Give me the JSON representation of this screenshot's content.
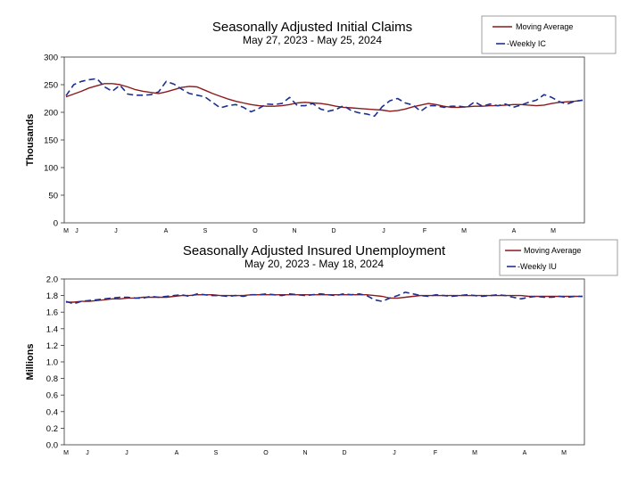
{
  "chart_data": [
    {
      "type": "line",
      "title": "Seasonally Adjusted Initial Claims",
      "subtitle": "May 27, 2023 - May 25, 2024",
      "ylabel": "Thousands",
      "ylim": [
        0,
        300
      ],
      "yticks": [
        "0",
        "50",
        "100",
        "150",
        "200",
        "250",
        "300"
      ],
      "month_labels": [
        "M",
        "J",
        "J",
        "A",
        "S",
        "O",
        "N",
        "D",
        "J",
        "F",
        "M",
        "A",
        "M"
      ],
      "grid": false,
      "legend_position": "top-right",
      "colors": {
        "moving_average": "#8B1A1A",
        "weekly": "#1F2F8F"
      },
      "series": [
        {
          "name": "Moving Average",
          "style": "solid",
          "values": [
            228,
            233,
            238,
            244,
            248,
            252,
            252,
            250,
            246,
            241,
            238,
            236,
            234,
            237,
            241,
            245,
            247,
            246,
            240,
            234,
            229,
            224,
            220,
            217,
            214,
            212,
            211,
            211,
            212,
            214,
            217,
            218,
            217,
            216,
            214,
            211,
            209,
            208,
            207,
            206,
            205,
            204,
            202,
            203,
            206,
            210,
            213,
            216,
            214,
            211,
            209,
            209,
            210,
            211,
            211,
            212,
            212,
            213,
            214,
            214,
            213,
            212,
            213,
            216,
            218,
            219,
            220,
            222
          ]
        },
        {
          "name": "-Weekly IC",
          "style": "dashed",
          "values": [
            230,
            250,
            256,
            259,
            261,
            246,
            238,
            249,
            233,
            231,
            231,
            232,
            237,
            256,
            251,
            242,
            234,
            231,
            228,
            218,
            208,
            212,
            214,
            209,
            201,
            207,
            215,
            214,
            216,
            227,
            212,
            212,
            216,
            206,
            202,
            205,
            212,
            203,
            199,
            197,
            193,
            210,
            221,
            225,
            217,
            213,
            202,
            212,
            212,
            209,
            211,
            211,
            209,
            219,
            211,
            215,
            212,
            215,
            209,
            213,
            218,
            222,
            232,
            227,
            219,
            215,
            220,
            222
          ]
        }
      ]
    },
    {
      "type": "line",
      "title": "Seasonally Adjusted Insured Unemployment",
      "subtitle": "May 20, 2023 - May 18, 2024",
      "ylabel": "Millions",
      "ylim": [
        0,
        2.0
      ],
      "yticks": [
        "0.0",
        "0.2",
        "0.4",
        "0.6",
        "0.8",
        "1.0",
        "1.2",
        "1.4",
        "1.6",
        "1.8",
        "2.0"
      ],
      "month_labels": [
        "M",
        "J",
        "J",
        "A",
        "S",
        "O",
        "N",
        "D",
        "J",
        "F",
        "M",
        "A",
        "M"
      ],
      "grid": false,
      "legend_position": "top-right",
      "colors": {
        "moving_average": "#8B1A1A",
        "weekly": "#1F2F8F"
      },
      "series": [
        {
          "name": "Moving Average",
          "style": "solid",
          "values": [
            1.72,
            1.72,
            1.73,
            1.73,
            1.74,
            1.75,
            1.76,
            1.76,
            1.77,
            1.77,
            1.78,
            1.78,
            1.78,
            1.78,
            1.79,
            1.8,
            1.8,
            1.81,
            1.81,
            1.81,
            1.8,
            1.8,
            1.8,
            1.8,
            1.81,
            1.81,
            1.81,
            1.81,
            1.81,
            1.81,
            1.81,
            1.81,
            1.81,
            1.81,
            1.81,
            1.81,
            1.81,
            1.81,
            1.81,
            1.81,
            1.8,
            1.79,
            1.77,
            1.77,
            1.78,
            1.79,
            1.8,
            1.8,
            1.8,
            1.8,
            1.8,
            1.8,
            1.8,
            1.8,
            1.8,
            1.8,
            1.8,
            1.8,
            1.8,
            1.8,
            1.79,
            1.79,
            1.79,
            1.79,
            1.79,
            1.79,
            1.79,
            1.79
          ]
        },
        {
          "name": "-Weekly IU",
          "style": "dashed",
          "values": [
            1.73,
            1.7,
            1.73,
            1.74,
            1.75,
            1.76,
            1.77,
            1.78,
            1.78,
            1.77,
            1.77,
            1.79,
            1.78,
            1.79,
            1.8,
            1.81,
            1.79,
            1.82,
            1.81,
            1.8,
            1.8,
            1.79,
            1.8,
            1.79,
            1.81,
            1.81,
            1.82,
            1.81,
            1.8,
            1.82,
            1.81,
            1.8,
            1.81,
            1.82,
            1.81,
            1.8,
            1.82,
            1.81,
            1.82,
            1.8,
            1.75,
            1.73,
            1.77,
            1.8,
            1.84,
            1.82,
            1.8,
            1.79,
            1.81,
            1.8,
            1.79,
            1.8,
            1.81,
            1.8,
            1.79,
            1.8,
            1.81,
            1.8,
            1.78,
            1.76,
            1.78,
            1.79,
            1.78,
            1.78,
            1.79,
            1.78,
            1.79,
            1.79
          ]
        }
      ]
    }
  ]
}
